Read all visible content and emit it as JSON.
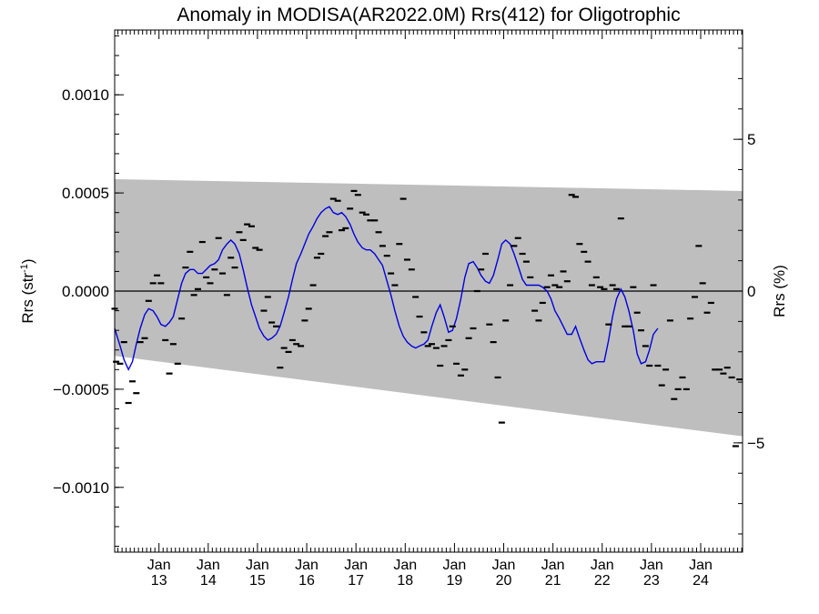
{
  "chart_data": {
    "type": "scatter",
    "title": "Anomaly in MODISA(AR2022.0M) Rrs(412) for Oligotrophic",
    "ylabel": "Rrs (str",
    "ylabel_sup": "-1",
    "ylabel_close": ")",
    "y2label": "Rrs (%)",
    "xlabel": "",
    "xlim": [
      2012.1,
      2024.85
    ],
    "ylim": [
      -0.00133,
      0.00133
    ],
    "y2lim": [
      -8.6,
      8.6
    ],
    "grid": false,
    "yticks": [
      {
        "value": 0.001,
        "label": "0.0010"
      },
      {
        "value": 0.0005,
        "label": "0.0005"
      },
      {
        "value": 0.0,
        "label": "0.0000"
      },
      {
        "value": -0.0005,
        "label": "−0.0005"
      },
      {
        "value": -0.001,
        "label": "−0.0010"
      }
    ],
    "y2ticks": [
      {
        "value": 5,
        "label": "5"
      },
      {
        "value": 0,
        "label": "0"
      },
      {
        "value": -5,
        "label": "−5"
      }
    ],
    "xticks": [
      {
        "value": 2013,
        "top": "Jan",
        "bottom": "13"
      },
      {
        "value": 2014,
        "top": "Jan",
        "bottom": "14"
      },
      {
        "value": 2015,
        "top": "Jan",
        "bottom": "15"
      },
      {
        "value": 2016,
        "top": "Jan",
        "bottom": "16"
      },
      {
        "value": 2017,
        "top": "Jan",
        "bottom": "17"
      },
      {
        "value": 2018,
        "top": "Jan",
        "bottom": "18"
      },
      {
        "value": 2019,
        "top": "Jan",
        "bottom": "19"
      },
      {
        "value": 2020,
        "top": "Jan",
        "bottom": "20"
      },
      {
        "value": 2021,
        "top": "Jan",
        "bottom": "21"
      },
      {
        "value": 2022,
        "top": "Jan",
        "bottom": "22"
      },
      {
        "value": 2023,
        "top": "Jan",
        "bottom": "23"
      },
      {
        "value": 2024,
        "top": "Jan",
        "bottom": "24"
      }
    ],
    "band": {
      "upper": [
        [
          2012.1,
          0.00057
        ],
        [
          2024.85,
          0.00051
        ]
      ],
      "lower": [
        [
          2012.1,
          -0.00033
        ],
        [
          2024.85,
          -0.00074
        ]
      ],
      "color": "#bebebe"
    },
    "zero_line": 0,
    "points_color": "#000000",
    "line_color": "#0000e0",
    "points": [
      [
        2012.1,
        -9e-05
      ],
      [
        2012.13,
        -0.00036
      ],
      [
        2012.21,
        -0.00037
      ],
      [
        2012.29,
        -0.00026
      ],
      [
        2012.38,
        -0.00057
      ],
      [
        2012.46,
        -0.00046
      ],
      [
        2012.54,
        -0.00052
      ],
      [
        2012.62,
        -0.00026
      ],
      [
        2012.71,
        -0.00024
      ],
      [
        2012.79,
        -5e-05
      ],
      [
        2012.88,
        4e-05
      ],
      [
        2012.96,
        8e-05
      ],
      [
        2013.04,
        4e-05
      ],
      [
        2013.13,
        -0.00025
      ],
      [
        2013.21,
        -0.00042
      ],
      [
        2013.29,
        -0.00027
      ],
      [
        2013.38,
        -0.00037
      ],
      [
        2013.46,
        -0.00014
      ],
      [
        2013.54,
        0.00012
      ],
      [
        2013.63,
        0.0002
      ],
      [
        2013.71,
        -2e-05
      ],
      [
        2013.79,
        1e-05
      ],
      [
        2013.88,
        0.00025
      ],
      [
        2013.96,
        7e-05
      ],
      [
        2014.04,
        4e-05
      ],
      [
        2014.13,
        0.00011
      ],
      [
        2014.21,
        0.00027
      ],
      [
        2014.29,
        9e-05
      ],
      [
        2014.38,
        -2e-05
      ],
      [
        2014.46,
        0.00017
      ],
      [
        2014.54,
        0.00012
      ],
      [
        2014.63,
        0.0003
      ],
      [
        2014.71,
        0.00026
      ],
      [
        2014.79,
        0.00034
      ],
      [
        2014.88,
        0.00033
      ],
      [
        2014.96,
        0.00022
      ],
      [
        2015.04,
        0.00021
      ],
      [
        2015.13,
        -0.0001
      ],
      [
        2015.21,
        -3e-05
      ],
      [
        2015.29,
        -0.00016
      ],
      [
        2015.38,
        -0.00018
      ],
      [
        2015.46,
        -0.00039
      ],
      [
        2015.54,
        -0.00029
      ],
      [
        2015.63,
        -0.00031
      ],
      [
        2015.71,
        -0.00025
      ],
      [
        2015.79,
        -0.00027
      ],
      [
        2015.88,
        -0.00028
      ],
      [
        2015.96,
        -0.00015
      ],
      [
        2016.04,
        -9e-05
      ],
      [
        2016.13,
        3e-05
      ],
      [
        2016.21,
        0.00017
      ],
      [
        2016.29,
        0.00019
      ],
      [
        2016.38,
        0.00028
      ],
      [
        2016.46,
        0.0003
      ],
      [
        2016.54,
        0.00047
      ],
      [
        2016.63,
        0.00046
      ],
      [
        2016.71,
        0.00031
      ],
      [
        2016.79,
        0.00032
      ],
      [
        2016.88,
        0.00042
      ],
      [
        2016.96,
        0.00051
      ],
      [
        2017.04,
        0.00049
      ],
      [
        2017.13,
        0.0004
      ],
      [
        2017.21,
        0.00039
      ],
      [
        2017.29,
        0.00036
      ],
      [
        2017.38,
        0.00036
      ],
      [
        2017.46,
        0.0003
      ],
      [
        2017.54,
        0.00023
      ],
      [
        2017.63,
        0.00018
      ],
      [
        2017.71,
        9e-05
      ],
      [
        2017.79,
        3e-05
      ],
      [
        2017.88,
        0.00024
      ],
      [
        2017.96,
        0.00047
      ],
      [
        2018.04,
        0.00016
      ],
      [
        2018.13,
        0.00011
      ],
      [
        2018.21,
        -3e-05
      ],
      [
        2018.29,
        -0.00013
      ],
      [
        2018.38,
        -0.00021
      ],
      [
        2018.46,
        -0.00028
      ],
      [
        2018.54,
        -0.00027
      ],
      [
        2018.63,
        -0.00029
      ],
      [
        2018.71,
        -0.00038
      ],
      [
        2018.79,
        -0.00028
      ],
      [
        2018.88,
        -0.00025
      ],
      [
        2018.96,
        -0.00018
      ],
      [
        2019.04,
        -0.00037
      ],
      [
        2019.13,
        -0.00043
      ],
      [
        2019.21,
        -0.0004
      ],
      [
        2019.29,
        -0.00024
      ],
      [
        2019.38,
        -0.00019
      ],
      [
        2019.46,
        0.0
      ],
      [
        2019.54,
        0.00011
      ],
      [
        2019.63,
        0.00019
      ],
      [
        2019.71,
        -0.00017
      ],
      [
        2019.79,
        -0.00026
      ],
      [
        2019.88,
        -0.00044
      ],
      [
        2019.96,
        -0.00067
      ],
      [
        2020.04,
        -0.00015
      ],
      [
        2020.13,
        3e-05
      ],
      [
        2020.21,
        0.00023
      ],
      [
        2020.29,
        0.00027
      ],
      [
        2020.38,
        0.00019
      ],
      [
        2020.46,
        0.00015
      ],
      [
        2020.54,
        7e-05
      ],
      [
        2020.63,
        -0.0001
      ],
      [
        2020.71,
        -0.00015
      ],
      [
        2020.79,
        -6e-05
      ],
      [
        2020.88,
        2e-05
      ],
      [
        2020.96,
        8e-05
      ],
      [
        2021.04,
        3e-05
      ],
      [
        2021.13,
        2e-05
      ],
      [
        2021.21,
        0.0001
      ],
      [
        2021.29,
        5e-05
      ],
      [
        2021.38,
        0.00049
      ],
      [
        2021.46,
        0.00048
      ],
      [
        2021.54,
        0.00024
      ],
      [
        2021.63,
        0.0002
      ],
      [
        2021.71,
        0.00015
      ],
      [
        2021.79,
        3e-05
      ],
      [
        2021.88,
        7e-05
      ],
      [
        2021.96,
        2e-05
      ],
      [
        2022.04,
        1e-05
      ],
      [
        2022.13,
        -0.00017
      ],
      [
        2022.21,
        3e-05
      ],
      [
        2022.29,
        1e-05
      ],
      [
        2022.38,
        0.00037
      ],
      [
        2022.46,
        -0.00018
      ],
      [
        2022.54,
        -0.00018
      ],
      [
        2022.63,
        2e-05
      ],
      [
        2022.71,
        -0.00011
      ],
      [
        2022.79,
        -0.0002
      ],
      [
        2022.88,
        -0.00028
      ],
      [
        2022.96,
        -0.00038
      ],
      [
        2023.04,
        3e-05
      ],
      [
        2023.13,
        -0.00038
      ],
      [
        2023.21,
        -0.00048
      ],
      [
        2023.29,
        -0.0004
      ],
      [
        2023.38,
        -0.00015
      ],
      [
        2023.46,
        -0.00055
      ],
      [
        2023.54,
        -0.0005
      ],
      [
        2023.63,
        -0.00044
      ],
      [
        2023.71,
        -0.0005
      ],
      [
        2023.79,
        -0.00014
      ],
      [
        2023.88,
        -3e-05
      ],
      [
        2023.96,
        0.00023
      ],
      [
        2024.04,
        4e-05
      ],
      [
        2024.13,
        -0.00011
      ],
      [
        2024.21,
        -6e-05
      ],
      [
        2024.29,
        -0.0004
      ],
      [
        2024.38,
        -0.0004
      ],
      [
        2024.46,
        -0.00042
      ],
      [
        2024.54,
        -0.00039
      ],
      [
        2024.63,
        -0.00044
      ],
      [
        2024.71,
        -0.00079
      ],
      [
        2024.79,
        -0.00045
      ]
    ],
    "smoothed": [
      [
        2012.1,
        -0.00019
      ],
      [
        2012.21,
        -0.00028
      ],
      [
        2012.29,
        -0.00035
      ],
      [
        2012.38,
        -0.0004
      ],
      [
        2012.46,
        -0.00036
      ],
      [
        2012.54,
        -0.00027
      ],
      [
        2012.62,
        -0.00019
      ],
      [
        2012.71,
        -0.00012
      ],
      [
        2012.79,
        -9e-05
      ],
      [
        2012.88,
        -0.0001
      ],
      [
        2012.96,
        -0.00013
      ],
      [
        2013.04,
        -0.00017
      ],
      [
        2013.13,
        -0.00018
      ],
      [
        2013.21,
        -0.00016
      ],
      [
        2013.29,
        -0.00013
      ],
      [
        2013.38,
        -4e-05
      ],
      [
        2013.46,
        4e-05
      ],
      [
        2013.54,
        9e-05
      ],
      [
        2013.63,
        0.00011
      ],
      [
        2013.71,
        0.00011
      ],
      [
        2013.79,
        9e-05
      ],
      [
        2013.88,
        9e-05
      ],
      [
        2013.96,
        0.00011
      ],
      [
        2014.04,
        0.00013
      ],
      [
        2014.13,
        0.00014
      ],
      [
        2014.21,
        0.00016
      ],
      [
        2014.29,
        0.00021
      ],
      [
        2014.38,
        0.00024
      ],
      [
        2014.46,
        0.00026
      ],
      [
        2014.54,
        0.00024
      ],
      [
        2014.63,
        0.00019
      ],
      [
        2014.71,
        0.00011
      ],
      [
        2014.79,
        2e-05
      ],
      [
        2014.88,
        -7e-05
      ],
      [
        2014.96,
        -0.00013
      ],
      [
        2015.04,
        -0.00019
      ],
      [
        2015.13,
        -0.00023
      ],
      [
        2015.21,
        -0.00025
      ],
      [
        2015.29,
        -0.00024
      ],
      [
        2015.38,
        -0.00022
      ],
      [
        2015.46,
        -0.00018
      ],
      [
        2015.54,
        -0.00011
      ],
      [
        2015.63,
        -3e-05
      ],
      [
        2015.71,
        6e-05
      ],
      [
        2015.79,
        0.00014
      ],
      [
        2015.88,
        0.00019
      ],
      [
        2015.96,
        0.00024
      ],
      [
        2016.04,
        0.00029
      ],
      [
        2016.13,
        0.00033
      ],
      [
        2016.21,
        0.00037
      ],
      [
        2016.29,
        0.0004
      ],
      [
        2016.38,
        0.00042
      ],
      [
        2016.46,
        0.00043
      ],
      [
        2016.54,
        0.0004
      ],
      [
        2016.63,
        0.00039
      ],
      [
        2016.71,
        0.0004
      ],
      [
        2016.79,
        0.00038
      ],
      [
        2016.88,
        0.00034
      ],
      [
        2016.96,
        0.00029
      ],
      [
        2017.04,
        0.00025
      ],
      [
        2017.13,
        0.00022
      ],
      [
        2017.21,
        0.00021
      ],
      [
        2017.29,
        0.00021
      ],
      [
        2017.38,
        0.00019
      ],
      [
        2017.46,
        0.00016
      ],
      [
        2017.54,
        0.00013
      ],
      [
        2017.63,
        5e-05
      ],
      [
        2017.71,
        -2e-05
      ],
      [
        2017.79,
        -0.0001
      ],
      [
        2017.88,
        -0.00018
      ],
      [
        2017.96,
        -0.00023
      ],
      [
        2018.04,
        -0.00026
      ],
      [
        2018.13,
        -0.00028
      ],
      [
        2018.21,
        -0.00029
      ],
      [
        2018.29,
        -0.00028
      ],
      [
        2018.38,
        -0.00027
      ],
      [
        2018.46,
        -0.00025
      ],
      [
        2018.54,
        -0.00018
      ],
      [
        2018.63,
        -0.00011
      ],
      [
        2018.71,
        -7e-05
      ],
      [
        2018.79,
        -0.00013
      ],
      [
        2018.88,
        -0.00021
      ],
      [
        2018.96,
        -0.0002
      ],
      [
        2019.04,
        -0.00014
      ],
      [
        2019.13,
        -4e-05
      ],
      [
        2019.21,
        7e-05
      ],
      [
        2019.29,
        0.00014
      ],
      [
        2019.38,
        0.00015
      ],
      [
        2019.46,
        0.00012
      ],
      [
        2019.54,
        8e-05
      ],
      [
        2019.63,
        5e-05
      ],
      [
        2019.71,
        4e-05
      ],
      [
        2019.79,
        8e-05
      ],
      [
        2019.88,
        0.00016
      ],
      [
        2019.96,
        0.00024
      ],
      [
        2020.04,
        0.00026
      ],
      [
        2020.13,
        0.00024
      ],
      [
        2020.21,
        0.00019
      ],
      [
        2020.29,
        0.00013
      ],
      [
        2020.38,
        6e-05
      ],
      [
        2020.46,
        3e-05
      ],
      [
        2020.54,
        3e-05
      ],
      [
        2020.63,
        3e-05
      ],
      [
        2020.71,
        3e-05
      ],
      [
        2020.79,
        2e-05
      ],
      [
        2020.88,
        0.0
      ],
      [
        2020.96,
        -4e-05
      ],
      [
        2021.04,
        -0.0001
      ],
      [
        2021.13,
        -0.00014
      ],
      [
        2021.21,
        -0.00018
      ],
      [
        2021.29,
        -0.00022
      ],
      [
        2021.38,
        -0.00022
      ],
      [
        2021.46,
        -0.00018
      ],
      [
        2021.54,
        -0.00024
      ],
      [
        2021.63,
        -0.0003
      ],
      [
        2021.71,
        -0.00035
      ],
      [
        2021.79,
        -0.00037
      ],
      [
        2021.88,
        -0.00036
      ],
      [
        2021.96,
        -0.00036
      ],
      [
        2022.04,
        -0.00036
      ],
      [
        2022.13,
        -0.00025
      ],
      [
        2022.21,
        -0.00013
      ],
      [
        2022.29,
        -4e-05
      ],
      [
        2022.38,
        1e-05
      ],
      [
        2022.46,
        -3e-05
      ],
      [
        2022.54,
        -0.0001
      ],
      [
        2022.63,
        -0.0002
      ],
      [
        2022.71,
        -0.00032
      ],
      [
        2022.79,
        -0.00037
      ],
      [
        2022.88,
        -0.00036
      ],
      [
        2022.96,
        -0.0003
      ],
      [
        2023.04,
        -0.00022
      ],
      [
        2023.13,
        -0.00019
      ]
    ]
  }
}
